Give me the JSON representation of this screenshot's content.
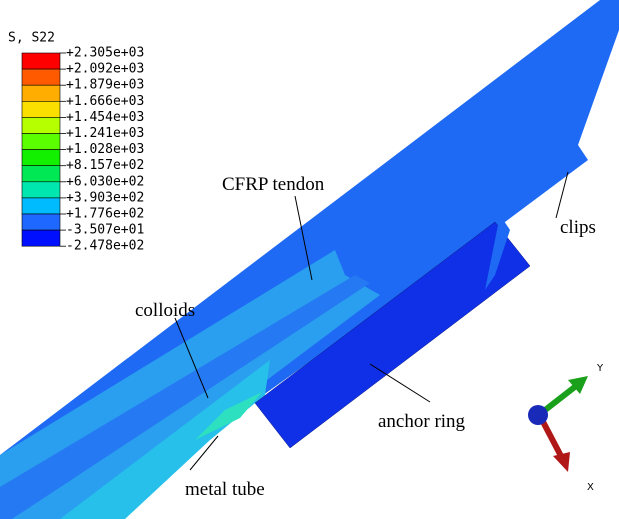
{
  "legend": {
    "title": "S, S22",
    "levels": [
      "+2.305e+03",
      "+2.092e+03",
      "+1.879e+03",
      "+1.666e+03",
      "+1.454e+03",
      "+1.241e+03",
      "+1.028e+03",
      "+8.157e+02",
      "+6.030e+02",
      "+3.903e+02",
      "+1.776e+02",
      "-3.507e+01",
      "-2.478e+02"
    ],
    "colors": [
      "#ff0000",
      "#ff5a00",
      "#ffad00",
      "#fadf00",
      "#b5ff00",
      "#5cff00",
      "#12f000",
      "#00e955",
      "#00e8b0",
      "#00bcff",
      "#1e68ff",
      "#0010ff"
    ]
  },
  "annotations": {
    "cfrp_tendon": "CFRP tendon",
    "colloids": "colloids",
    "anchor_ring": "anchor ring",
    "clips": "clips",
    "metal_tube": "metal tube"
  },
  "triad": {
    "y": "Y",
    "x": "X"
  }
}
